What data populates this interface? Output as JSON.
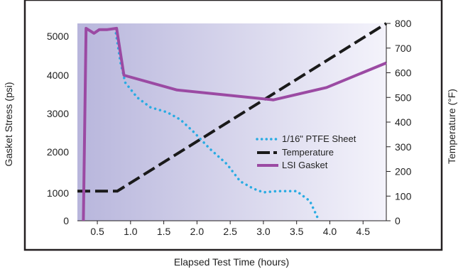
{
  "chart_data": {
    "type": "line",
    "title": "",
    "xlabel": "Elapsed Test Time (hours)",
    "ylabel_left": "Gasket Stress (psi)",
    "ylabel_right": "Temperature (°F)",
    "xlim": [
      0.2,
      4.85
    ],
    "x_ticks": [
      "0.5",
      "1.0",
      "1.5",
      "2.0",
      "2.5",
      "3.0",
      "3.5",
      "4.0",
      "4.5"
    ],
    "x_tick_values": [
      0.5,
      1.0,
      1.5,
      2.0,
      2.5,
      3.0,
      3.5,
      4.0,
      4.5
    ],
    "y_left_ticks": [
      "0",
      "1000",
      "2000",
      "3000",
      "4000",
      "5000"
    ],
    "y_right_ticks": [
      "0",
      "100",
      "200",
      "300",
      "400",
      "500",
      "600",
      "700",
      "800"
    ],
    "y_right_tick_values": [
      0,
      100,
      200,
      300,
      400,
      500,
      600,
      700,
      800
    ],
    "legend_position": "center-right",
    "series": [
      {
        "name": "1/16\" PTFE Sheet",
        "axis": "right",
        "style": "dotted",
        "color": "#29abe2",
        "x": [
          0.78,
          0.85,
          0.92,
          1.1,
          1.3,
          1.55,
          1.75,
          1.95,
          2.2,
          2.45,
          2.65,
          2.85,
          3.0,
          3.2,
          3.5,
          3.7,
          3.82
        ],
        "y": [
          760,
          640,
          560,
          500,
          460,
          440,
          410,
          360,
          290,
          230,
          160,
          130,
          115,
          120,
          120,
          80,
          10
        ]
      },
      {
        "name": "Temperature",
        "axis": "right",
        "style": "dashed",
        "color": "#1a1a1a",
        "x": [
          0.2,
          0.8,
          4.85
        ],
        "y": [
          120,
          120,
          800
        ]
      },
      {
        "name": "LSI Gasket",
        "axis": "right",
        "style": "solid",
        "color": "#9b4aa3",
        "x": [
          0.29,
          0.33,
          0.45,
          0.53,
          0.65,
          0.79,
          0.9,
          1.7,
          3.15,
          3.95,
          4.85
        ],
        "y": [
          0,
          780,
          760,
          775,
          775,
          780,
          590,
          530,
          490,
          540,
          640
        ]
      }
    ]
  }
}
